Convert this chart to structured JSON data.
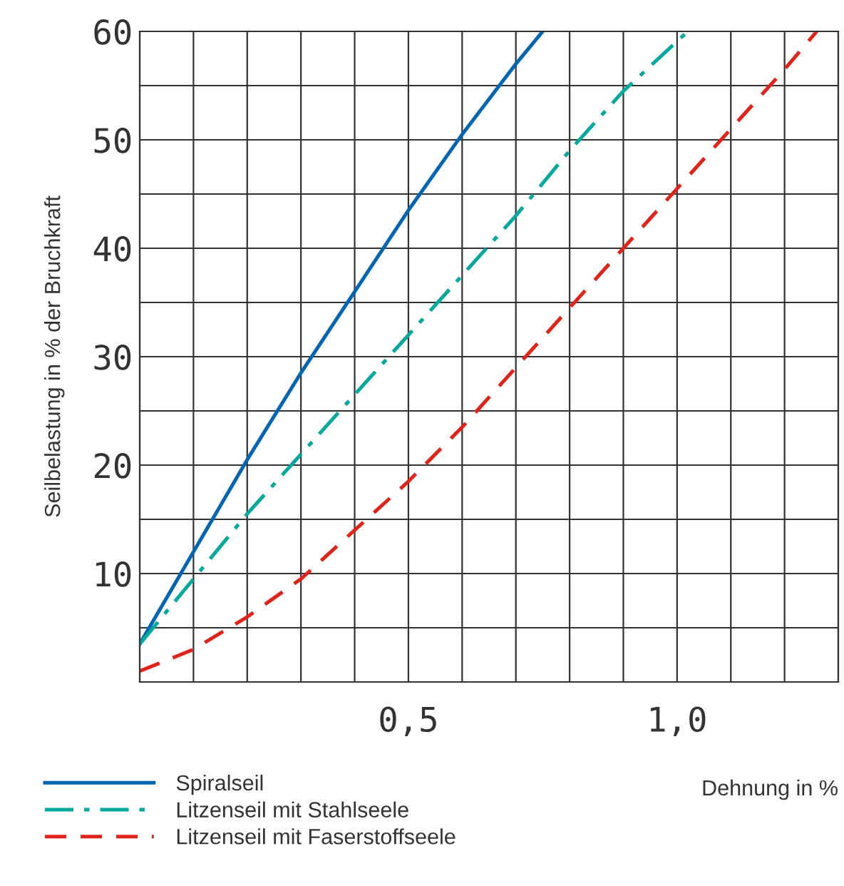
{
  "chart_data": {
    "type": "line",
    "xlabel": "Dehnung in %",
    "ylabel": "Seilbelastung in % der Bruchkraft",
    "xlim": [
      0,
      1.3
    ],
    "ylim": [
      0,
      60
    ],
    "xticks": [
      {
        "value": 0,
        "label": null
      },
      {
        "value": 0.1,
        "label": null
      },
      {
        "value": 0.2,
        "label": null
      },
      {
        "value": 0.3,
        "label": null
      },
      {
        "value": 0.4,
        "label": null
      },
      {
        "value": 0.5,
        "label": "0,5"
      },
      {
        "value": 0.6,
        "label": null
      },
      {
        "value": 0.7,
        "label": null
      },
      {
        "value": 0.8,
        "label": null
      },
      {
        "value": 0.9,
        "label": null
      },
      {
        "value": 1.0,
        "label": "1,0"
      },
      {
        "value": 1.1,
        "label": null
      },
      {
        "value": 1.2,
        "label": null
      },
      {
        "value": 1.3,
        "label": null
      }
    ],
    "yticks": [
      {
        "value": 0,
        "label": null
      },
      {
        "value": 5,
        "label": null
      },
      10,
      {
        "value": 15,
        "label": null
      },
      20,
      {
        "value": 25,
        "label": null
      },
      30,
      {
        "value": 35,
        "label": null
      },
      40,
      {
        "value": 45,
        "label": null
      },
      50,
      {
        "value": 55,
        "label": null
      },
      60
    ],
    "grid": true,
    "legend": "bottom left",
    "series": [
      {
        "name": "Spiralseil",
        "color": "#0066b3",
        "line_style": "solid",
        "x": [
          0,
          0.1,
          0.2,
          0.3,
          0.4,
          0.5,
          0.6,
          0.7,
          0.75
        ],
        "values": [
          3.5,
          12,
          20.5,
          28.5,
          36,
          43.5,
          50.5,
          57,
          60
        ]
      },
      {
        "name": "Litzenseil mit Stahlseele",
        "color": "#00a99d",
        "line_style": "dashdot",
        "x": [
          0,
          0.1,
          0.2,
          0.3,
          0.4,
          0.5,
          0.6,
          0.7,
          0.8,
          0.9,
          1.02
        ],
        "values": [
          3.5,
          9.5,
          15.5,
          21,
          26.5,
          32,
          37.5,
          43,
          49,
          54.5,
          60
        ]
      },
      {
        "name": "Litzenseil mit Faserstoffseele",
        "color": "#e2231a",
        "line_style": "dashed",
        "x": [
          0,
          0.1,
          0.2,
          0.3,
          0.4,
          0.5,
          0.6,
          0.7,
          0.8,
          0.9,
          1.0,
          1.1,
          1.2,
          1.26
        ],
        "values": [
          1,
          3,
          6,
          9.5,
          14,
          18.5,
          23.5,
          29,
          34.5,
          40,
          45.5,
          51,
          56.5,
          60
        ]
      }
    ]
  }
}
